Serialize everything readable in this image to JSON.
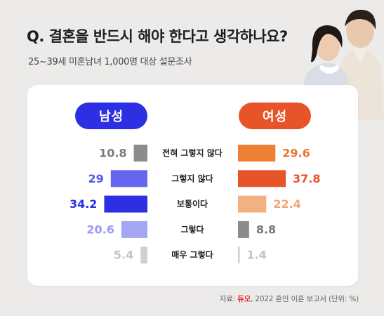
{
  "title": "Q. 결혼을 반드시 해야 한다고 생각하나요?",
  "subtitle": "25~39세 미혼남녀 1,000명 대상 설문조사",
  "legend": {
    "male": "남성",
    "female": "여성"
  },
  "source": {
    "prefix": "자료: ",
    "logo": "듀오",
    "suffix": ", 2022 혼인 이혼 보고서 (단위: %)"
  },
  "colors": {
    "background": "#ecebea",
    "card": "#ffffff",
    "male_pill": "#2d2fe2",
    "female_pill": "#e8542a",
    "logo": "#e0262a"
  },
  "chart_data": {
    "type": "bar",
    "orientation": "horizontal-butterfly",
    "unit": "%",
    "categories": [
      "전혀 그렇지 않다",
      "그렇지 않다",
      "보통이다",
      "그렇다",
      "매우 그렇다"
    ],
    "series": [
      {
        "name": "남성",
        "values": [
          10.8,
          29,
          34.2,
          20.6,
          5.4
        ],
        "labels": [
          "10.8",
          "29",
          "34.2",
          "20.6",
          "5.4"
        ],
        "bar_colors": [
          "#8c8c8c",
          "#6466ee",
          "#2d2fe2",
          "#a3a6f2",
          "#d0d0d0"
        ],
        "label_colors": [
          "#7a7a7a",
          "#5557ea",
          "#2d2fe2",
          "#9a9cef",
          "#c4c4c4"
        ]
      },
      {
        "name": "여성",
        "values": [
          29.6,
          37.8,
          22.4,
          8.8,
          1.4
        ],
        "labels": [
          "29.6",
          "37.8",
          "22.4",
          "8.8",
          "1.4"
        ],
        "bar_colors": [
          "#ee8033",
          "#e8542a",
          "#f2b083",
          "#8c8c8c",
          "#d0d0d0"
        ],
        "label_colors": [
          "#e8752c",
          "#e8542a",
          "#eea673",
          "#7a7a7a",
          "#c4c4c4"
        ]
      }
    ],
    "xlim": [
      0,
      40
    ],
    "grid": false,
    "legend_position": "top"
  }
}
